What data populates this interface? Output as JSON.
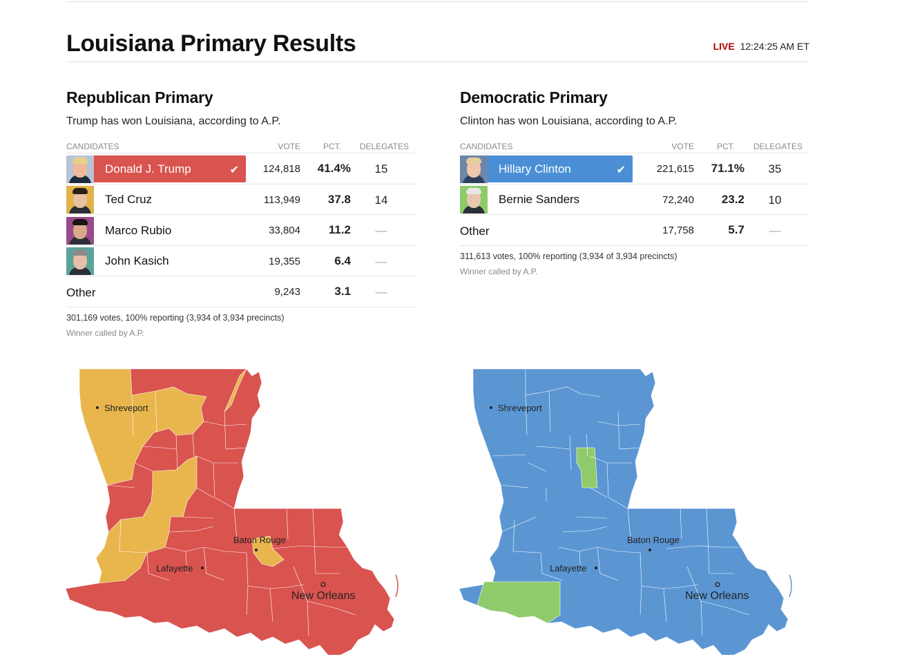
{
  "header": {
    "title": "Louisiana Primary Results",
    "live_label": "LIVE",
    "time": "12:24:25 AM ET"
  },
  "colors": {
    "trump": "#d9534f",
    "cruz": "#e9b54d",
    "clinton": "#5b96d3",
    "sanders": "#8fcb6a"
  },
  "columns": {
    "candidates": "CANDIDATES",
    "vote": "VOTE",
    "pct": "PCT.",
    "delegates": "DELEGATES"
  },
  "republican": {
    "title": "Republican Primary",
    "status": "Trump has won Louisiana, according to A.P.",
    "candidates": [
      {
        "name": "Donald J. Trump",
        "vote": "124,818",
        "pct": "41.4%",
        "delegates": "15",
        "winner": true,
        "photo": "trump-photo"
      },
      {
        "name": "Ted Cruz",
        "vote": "113,949",
        "pct": "37.8",
        "delegates": "14",
        "winner": false,
        "photo": "cruz-photo"
      },
      {
        "name": "Marco Rubio",
        "vote": "33,804",
        "pct": "11.2",
        "delegates": "—",
        "winner": false,
        "photo": "rubio-photo"
      },
      {
        "name": "John Kasich",
        "vote": "19,355",
        "pct": "6.4",
        "delegates": "—",
        "winner": false,
        "photo": "kasich-photo"
      }
    ],
    "other": {
      "name": "Other",
      "vote": "9,243",
      "pct": "3.1",
      "delegates": "—"
    },
    "footnote": "301,169 votes, 100% reporting (3,934 of 3,934 precincts)",
    "called": "Winner called by A.P."
  },
  "democratic": {
    "title": "Democratic Primary",
    "status": "Clinton has won Louisiana, according to A.P.",
    "candidates": [
      {
        "name": "Hillary Clinton",
        "vote": "221,615",
        "pct": "71.1%",
        "delegates": "35",
        "winner": true,
        "photo": "clinton-photo"
      },
      {
        "name": "Bernie Sanders",
        "vote": "72,240",
        "pct": "23.2",
        "delegates": "10",
        "winner": false,
        "photo": "sanders-photo"
      }
    ],
    "other": {
      "name": "Other",
      "vote": "17,758",
      "pct": "5.7",
      "delegates": "—"
    },
    "footnote": "311,613 votes, 100% reporting (3,934 of 3,934 precincts)",
    "called": "Winner called by A.P."
  },
  "map_cities": {
    "shreveport": "Shreveport",
    "baton_rouge": "Baton Rouge",
    "lafayette": "Lafayette",
    "new_orleans": "New Orleans"
  }
}
